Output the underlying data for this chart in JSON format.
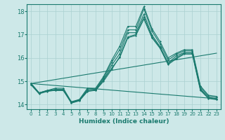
{
  "xlabel": "Humidex (Indice chaleur)",
  "xlim": [
    -0.5,
    23.5
  ],
  "ylim": [
    13.8,
    18.3
  ],
  "background_color": "#cde8e8",
  "grid_color": "#aad0d0",
  "line_color": "#1a7a6e",
  "x_ticks": [
    0,
    1,
    2,
    3,
    4,
    5,
    6,
    7,
    8,
    9,
    10,
    11,
    12,
    13,
    14,
    15,
    16,
    17,
    18,
    19,
    20,
    21,
    22,
    23
  ],
  "y_ticks": [
    14,
    15,
    16,
    17,
    18
  ],
  "series": [
    [
      14.9,
      14.5,
      14.6,
      14.6,
      14.6,
      14.1,
      14.2,
      14.6,
      14.6,
      15.0,
      15.5,
      16.05,
      16.9,
      17.0,
      17.75,
      16.9,
      16.45,
      15.75,
      16.0,
      16.2,
      16.2,
      14.65,
      14.3,
      14.25
    ],
    [
      14.85,
      14.48,
      14.58,
      14.63,
      14.63,
      14.08,
      14.18,
      14.58,
      14.63,
      15.08,
      15.68,
      16.18,
      17.08,
      17.08,
      17.88,
      16.98,
      16.48,
      15.78,
      16.08,
      16.23,
      16.23,
      14.68,
      14.28,
      14.23
    ],
    [
      14.9,
      14.5,
      14.6,
      14.65,
      14.65,
      14.1,
      14.2,
      14.65,
      14.65,
      15.15,
      15.8,
      16.35,
      17.2,
      17.2,
      18.1,
      17.15,
      16.6,
      15.9,
      16.15,
      16.3,
      16.3,
      14.75,
      14.35,
      14.3
    ],
    [
      14.9,
      14.5,
      14.6,
      14.7,
      14.7,
      14.12,
      14.22,
      14.7,
      14.7,
      15.2,
      15.9,
      16.5,
      17.35,
      17.35,
      18.2,
      17.25,
      16.7,
      16.0,
      16.2,
      16.35,
      16.35,
      14.8,
      14.4,
      14.35
    ],
    [
      14.85,
      14.46,
      14.56,
      14.61,
      14.61,
      14.06,
      14.16,
      14.56,
      14.61,
      15.06,
      15.56,
      16.01,
      16.86,
      16.96,
      17.66,
      16.86,
      16.41,
      15.71,
      15.96,
      16.16,
      16.16,
      14.61,
      14.26,
      14.21
    ]
  ],
  "straight_lines": [
    {
      "x0": 0,
      "y0": 14.9,
      "x1": 23,
      "y1": 14.25
    },
    {
      "x0": 0,
      "y0": 14.9,
      "x1": 23,
      "y1": 16.2
    }
  ]
}
